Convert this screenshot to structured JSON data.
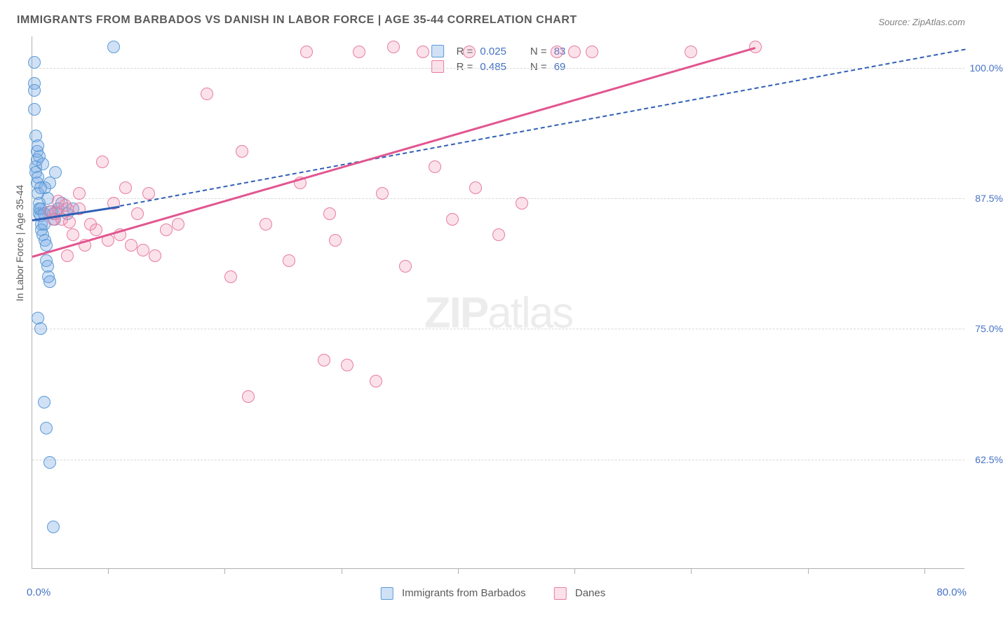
{
  "title": "IMMIGRANTS FROM BARBADOS VS DANISH IN LABOR FORCE | AGE 35-44 CORRELATION CHART",
  "source": "Source: ZipAtlas.com",
  "ylabel": "In Labor Force | Age 35-44",
  "watermark_a": "ZIP",
  "watermark_b": "atlas",
  "chart": {
    "type": "scatter",
    "xlim": [
      0,
      80
    ],
    "ylim": [
      52,
      103
    ],
    "x_origin_label": "0.0%",
    "x_max_label": "80.0%",
    "y_ticks": [
      {
        "v": 62.5,
        "label": "62.5%"
      },
      {
        "v": 75.0,
        "label": "75.0%"
      },
      {
        "v": 87.5,
        "label": "87.5%"
      },
      {
        "v": 100.0,
        "label": "100.0%"
      }
    ],
    "x_ticks": [
      6.5,
      16.5,
      26.5,
      36.5,
      46.5,
      56.5,
      66.5,
      76.5
    ],
    "colors": {
      "blue_fill": "rgba(120,170,230,0.35)",
      "blue_stroke": "#5b9bd5",
      "pink_fill": "rgba(240,140,170,0.25)",
      "pink_stroke": "#e87ba0",
      "blue_line": "#2f5fb5",
      "pink_line": "#e25590",
      "label_blue": "#4472c4"
    },
    "dot_radius": 9,
    "series": [
      {
        "name": "Immigrants from Barbados",
        "color_key": "blue",
        "R": "0.025",
        "N": "83",
        "trend": {
          "x1": 0,
          "y1": 85.5,
          "x2": 7.5,
          "y2": 86.8,
          "style": "solid",
          "width": 3
        },
        "trend_ext": {
          "x1": 7.5,
          "y1": 86.8,
          "x2": 80,
          "y2": 101.8,
          "style": "dashed"
        },
        "points": [
          [
            0.2,
            100.5
          ],
          [
            0.2,
            98.5
          ],
          [
            0.2,
            97.8
          ],
          [
            0.2,
            96.0
          ],
          [
            0.3,
            90.5
          ],
          [
            0.3,
            90.0
          ],
          [
            0.4,
            91.2
          ],
          [
            0.4,
            89.0
          ],
          [
            0.5,
            89.5
          ],
          [
            0.5,
            88.0
          ],
          [
            0.6,
            87.0
          ],
          [
            0.6,
            86.5
          ],
          [
            0.6,
            86.0
          ],
          [
            0.7,
            86.5
          ],
          [
            0.7,
            85.8
          ],
          [
            0.8,
            85.0
          ],
          [
            0.8,
            84.5
          ],
          [
            0.9,
            84.0
          ],
          [
            1.0,
            86.0
          ],
          [
            1.0,
            85.0
          ],
          [
            1.1,
            83.5
          ],
          [
            1.2,
            83.0
          ],
          [
            1.2,
            81.5
          ],
          [
            1.3,
            81.0
          ],
          [
            1.4,
            80.0
          ],
          [
            1.5,
            79.5
          ],
          [
            0.5,
            76.0
          ],
          [
            0.7,
            75.0
          ],
          [
            1.0,
            68.0
          ],
          [
            1.2,
            65.5
          ],
          [
            1.5,
            62.2
          ],
          [
            1.8,
            56.0
          ],
          [
            7.0,
            102.0
          ],
          [
            1.8,
            86.0
          ],
          [
            2.2,
            86.5
          ],
          [
            2.5,
            87.0
          ],
          [
            3.0,
            86.0
          ],
          [
            3.5,
            86.5
          ],
          [
            1.5,
            89.0
          ],
          [
            2.0,
            90.0
          ],
          [
            0.4,
            92.0
          ],
          [
            0.6,
            91.5
          ],
          [
            0.9,
            90.8
          ],
          [
            1.1,
            88.5
          ],
          [
            1.3,
            87.5
          ],
          [
            1.6,
            86.2
          ],
          [
            1.9,
            85.5
          ],
          [
            0.3,
            93.5
          ],
          [
            0.5,
            92.5
          ],
          [
            0.7,
            88.5
          ]
        ]
      },
      {
        "name": "Danes",
        "color_key": "pink",
        "R": "0.485",
        "N": "69",
        "trend": {
          "x1": 0,
          "y1": 82.0,
          "x2": 62,
          "y2": 102.0,
          "style": "solid",
          "width": 3
        },
        "points": [
          [
            2.0,
            86.0
          ],
          [
            2.5,
            85.5
          ],
          [
            3.0,
            86.5
          ],
          [
            3.5,
            84.0
          ],
          [
            4.0,
            86.5
          ],
          [
            4.5,
            83.0
          ],
          [
            5.0,
            85.0
          ],
          [
            5.5,
            84.5
          ],
          [
            6.5,
            83.5
          ],
          [
            7.5,
            84.0
          ],
          [
            8.5,
            83.0
          ],
          [
            9.5,
            82.5
          ],
          [
            10.5,
            82.0
          ],
          [
            7.0,
            87.0
          ],
          [
            8.0,
            88.5
          ],
          [
            9.0,
            86.0
          ],
          [
            10.0,
            88.0
          ],
          [
            11.5,
            84.5
          ],
          [
            12.5,
            85.0
          ],
          [
            15.0,
            97.5
          ],
          [
            17.0,
            80.0
          ],
          [
            18.0,
            92.0
          ],
          [
            18.5,
            68.5
          ],
          [
            20.0,
            85.0
          ],
          [
            22.0,
            81.5
          ],
          [
            23.0,
            89.0
          ],
          [
            23.5,
            101.5
          ],
          [
            25.0,
            72.0
          ],
          [
            25.5,
            86.0
          ],
          [
            26.0,
            83.5
          ],
          [
            27.0,
            71.5
          ],
          [
            28.0,
            101.5
          ],
          [
            29.5,
            70.0
          ],
          [
            30.0,
            88.0
          ],
          [
            31.0,
            102.0
          ],
          [
            32.0,
            81.0
          ],
          [
            33.5,
            101.5
          ],
          [
            34.5,
            90.5
          ],
          [
            36.0,
            85.5
          ],
          [
            37.5,
            101.5
          ],
          [
            38.0,
            88.5
          ],
          [
            40.0,
            84.0
          ],
          [
            42.0,
            87.0
          ],
          [
            45.0,
            101.5
          ],
          [
            46.5,
            101.5
          ],
          [
            48.0,
            101.5
          ],
          [
            56.5,
            101.5
          ],
          [
            62.0,
            102.0
          ],
          [
            3.0,
            82.0
          ],
          [
            4.0,
            88.0
          ],
          [
            6.0,
            91.0
          ],
          [
            2.8,
            86.8
          ],
          [
            1.8,
            85.5
          ],
          [
            1.5,
            86.2
          ],
          [
            2.2,
            87.2
          ],
          [
            3.2,
            85.2
          ]
        ]
      }
    ]
  },
  "bottom_legend": {
    "item1": "Immigrants from Barbados",
    "item2": "Danes"
  }
}
